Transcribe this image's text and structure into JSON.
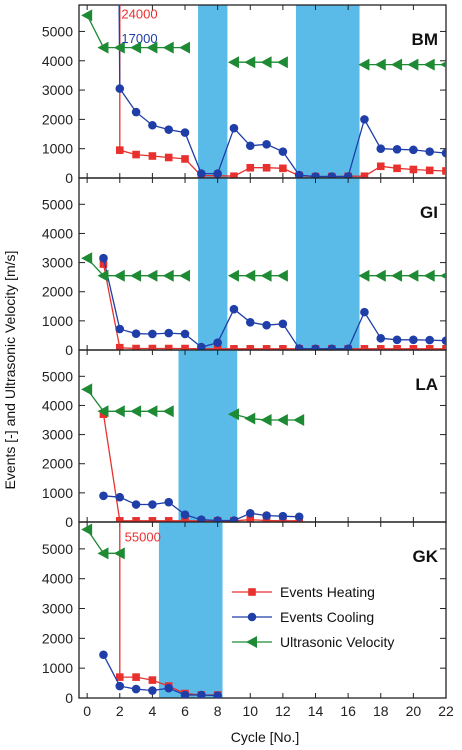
{
  "chart_data": {
    "type": "line",
    "ylabel": "Events [-] and Ultrasonic Velocity [m/s]",
    "xlabel": "Cycle [No.]",
    "xlim": [
      -0.5,
      22
    ],
    "xticks": [
      0,
      2,
      4,
      6,
      8,
      10,
      12,
      14,
      16,
      18,
      20,
      22
    ],
    "ylim": [
      0,
      5800
    ],
    "yticks": [
      0,
      1000,
      2000,
      3000,
      4000,
      5000
    ],
    "colors": {
      "heating": "#e8312f",
      "cooling": "#1f3ea8",
      "velocity": "#1e8a34",
      "band": "#5bbbe8"
    },
    "legend": {
      "panel": 3,
      "entries": [
        {
          "label": "Events Heating",
          "series": "heating"
        },
        {
          "label": "Events Cooling",
          "series": "cooling"
        },
        {
          "label": "Ultrasonic Velocity",
          "series": "velocity"
        }
      ]
    },
    "panels": [
      {
        "label": "BM",
        "bands": [
          [
            6.8,
            8.6
          ],
          [
            12.8,
            16.7
          ]
        ],
        "annotations": [
          {
            "text": "24000",
            "series": "heating",
            "x": 2.1,
            "y": 5450
          },
          {
            "text": "17000",
            "series": "cooling",
            "x": 2.1,
            "y": 4600
          }
        ],
        "series": [
          {
            "name": "heating",
            "marker": "square",
            "offscale": [
              2,
              24000
            ],
            "points": [
              [
                2,
                950
              ],
              [
                3,
                800
              ],
              [
                4,
                750
              ],
              [
                5,
                700
              ],
              [
                6,
                650
              ],
              [
                7,
                80
              ],
              [
                8,
                80
              ],
              [
                9,
                60
              ],
              [
                10,
                350
              ],
              [
                11,
                350
              ],
              [
                12,
                330
              ],
              [
                13,
                80
              ],
              [
                14,
                50
              ],
              [
                15,
                50
              ],
              [
                16,
                60
              ],
              [
                17,
                60
              ],
              [
                18,
                400
              ],
              [
                19,
                330
              ],
              [
                20,
                290
              ],
              [
                21,
                260
              ],
              [
                22,
                240
              ]
            ]
          },
          {
            "name": "cooling",
            "marker": "circle",
            "offscale": [
              1.8,
              17000
            ],
            "points": [
              [
                2,
                3050
              ],
              [
                3,
                2250
              ],
              [
                4,
                1800
              ],
              [
                5,
                1650
              ],
              [
                6,
                1550
              ],
              [
                7,
                150
              ],
              [
                8,
                150
              ],
              [
                9,
                1700
              ],
              [
                10,
                1100
              ],
              [
                11,
                1150
              ],
              [
                12,
                900
              ],
              [
                13,
                100
              ],
              [
                14,
                50
              ],
              [
                15,
                50
              ],
              [
                16,
                50
              ],
              [
                17,
                2000
              ],
              [
                18,
                1000
              ],
              [
                19,
                980
              ],
              [
                20,
                960
              ],
              [
                21,
                900
              ],
              [
                22,
                850
              ]
            ]
          },
          {
            "name": "velocity",
            "marker": "triangle-left",
            "points": [
              [
                0,
                5550
              ],
              [
                1,
                4450
              ],
              [
                2,
                4450
              ],
              [
                3,
                4450
              ],
              [
                4,
                4450
              ],
              [
                5,
                4450
              ],
              [
                6,
                4450
              ],
              [
                null,
                null
              ],
              [
                9,
                3950
              ],
              [
                10,
                3950
              ],
              [
                11,
                3950
              ],
              [
                12,
                3950
              ],
              [
                null,
                null
              ],
              [
                17,
                3870
              ],
              [
                18,
                3870
              ],
              [
                19,
                3870
              ],
              [
                20,
                3870
              ],
              [
                21,
                3870
              ],
              [
                22,
                3870
              ]
            ]
          }
        ]
      },
      {
        "label": "GI",
        "bands": [
          [
            6.8,
            8.6
          ],
          [
            12.8,
            16.7
          ]
        ],
        "annotations": [],
        "series": [
          {
            "name": "heating",
            "marker": "square",
            "points": [
              [
                1,
                2950
              ],
              [
                2,
                80
              ],
              [
                3,
                50
              ],
              [
                4,
                50
              ],
              [
                5,
                50
              ],
              [
                6,
                50
              ],
              [
                7,
                40
              ],
              [
                8,
                40
              ],
              [
                9,
                40
              ],
              [
                10,
                40
              ],
              [
                11,
                40
              ],
              [
                12,
                40
              ],
              [
                13,
                40
              ],
              [
                14,
                40
              ],
              [
                15,
                40
              ],
              [
                16,
                40
              ],
              [
                17,
                40
              ],
              [
                18,
                40
              ],
              [
                19,
                40
              ],
              [
                20,
                40
              ],
              [
                21,
                40
              ],
              [
                22,
                40
              ]
            ]
          },
          {
            "name": "cooling",
            "marker": "circle",
            "points": [
              [
                1,
                3150
              ],
              [
                2,
                720
              ],
              [
                3,
                560
              ],
              [
                4,
                550
              ],
              [
                5,
                580
              ],
              [
                6,
                550
              ],
              [
                7,
                100
              ],
              [
                8,
                250
              ],
              [
                9,
                1400
              ],
              [
                10,
                950
              ],
              [
                11,
                850
              ],
              [
                12,
                900
              ],
              [
                13,
                50
              ],
              [
                14,
                40
              ],
              [
                15,
                40
              ],
              [
                16,
                40
              ],
              [
                17,
                1300
              ],
              [
                18,
                400
              ],
              [
                19,
                350
              ],
              [
                20,
                350
              ],
              [
                21,
                340
              ],
              [
                22,
                320
              ]
            ]
          },
          {
            "name": "velocity",
            "marker": "triangle-left",
            "points": [
              [
                0,
                3150
              ],
              [
                1,
                2550
              ],
              [
                2,
                2550
              ],
              [
                3,
                2550
              ],
              [
                4,
                2550
              ],
              [
                5,
                2550
              ],
              [
                6,
                2550
              ],
              [
                null,
                null
              ],
              [
                9,
                2550
              ],
              [
                10,
                2550
              ],
              [
                11,
                2550
              ],
              [
                12,
                2550
              ],
              [
                null,
                null
              ],
              [
                17,
                2550
              ],
              [
                18,
                2550
              ],
              [
                19,
                2550
              ],
              [
                20,
                2550
              ],
              [
                21,
                2550
              ],
              [
                22,
                2550
              ]
            ]
          }
        ]
      },
      {
        "label": "LA",
        "bands": [
          [
            5.6,
            9.2
          ]
        ],
        "annotations": [],
        "series": [
          {
            "name": "heating",
            "marker": "square",
            "points": [
              [
                1,
                3700
              ],
              [
                2,
                40
              ],
              [
                3,
                40
              ],
              [
                4,
                40
              ],
              [
                5,
                40
              ],
              [
                6,
                40
              ],
              [
                7,
                40
              ],
              [
                8,
                40
              ],
              [
                9,
                40
              ],
              [
                10,
                80
              ],
              [
                11,
                50
              ],
              [
                12,
                40
              ],
              [
                13,
                40
              ]
            ]
          },
          {
            "name": "cooling",
            "marker": "circle",
            "points": [
              [
                1,
                900
              ],
              [
                2,
                850
              ],
              [
                3,
                600
              ],
              [
                4,
                600
              ],
              [
                5,
                680
              ],
              [
                6,
                250
              ],
              [
                7,
                80
              ],
              [
                8,
                50
              ],
              [
                9,
                50
              ],
              [
                10,
                300
              ],
              [
                11,
                220
              ],
              [
                12,
                200
              ],
              [
                13,
                180
              ]
            ]
          },
          {
            "name": "velocity",
            "marker": "triangle-left",
            "points": [
              [
                0,
                4550
              ],
              [
                1,
                3800
              ],
              [
                2,
                3800
              ],
              [
                3,
                3800
              ],
              [
                4,
                3800
              ],
              [
                5,
                3800
              ],
              [
                null,
                null
              ],
              [
                9,
                3700
              ],
              [
                10,
                3550
              ],
              [
                11,
                3500
              ],
              [
                12,
                3500
              ],
              [
                13,
                3500
              ]
            ]
          }
        ]
      },
      {
        "label": "GK",
        "bands": [
          [
            4.4,
            8.3
          ]
        ],
        "annotations": [
          {
            "text": "55000",
            "series": "heating",
            "x": 2.3,
            "y": 5250
          }
        ],
        "series": [
          {
            "name": "heating",
            "marker": "square",
            "offscale": [
              2,
              55000
            ],
            "points": [
              [
                2,
                700
              ],
              [
                3,
                700
              ],
              [
                4,
                600
              ],
              [
                5,
                400
              ],
              [
                6,
                150
              ],
              [
                7,
                100
              ],
              [
                8,
                100
              ]
            ]
          },
          {
            "name": "cooling",
            "marker": "circle",
            "points": [
              [
                1,
                1450
              ],
              [
                2,
                400
              ],
              [
                3,
                300
              ],
              [
                4,
                250
              ],
              [
                5,
                330
              ],
              [
                6,
                100
              ],
              [
                7,
                100
              ],
              [
                8,
                80
              ]
            ]
          },
          {
            "name": "velocity",
            "marker": "triangle-left",
            "points": [
              [
                0,
                5650
              ],
              [
                1,
                4850
              ],
              [
                2,
                4850
              ]
            ]
          }
        ]
      }
    ]
  }
}
